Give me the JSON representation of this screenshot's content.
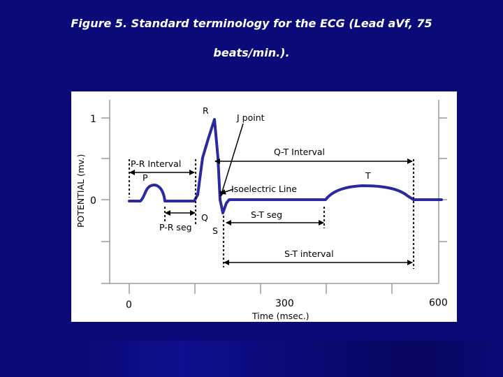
{
  "title": {
    "line1": "Figure 5. Standard terminology for the ECG (Lead aVf, 75",
    "line2": "beats/min.)."
  },
  "diagram": {
    "y_axis_label": "POTENTIAL (mv.)",
    "y_ticks": [
      "1",
      "0"
    ],
    "x_axis_label": "Time (msec.)",
    "x_ticks": [
      "0",
      "300",
      "600"
    ],
    "waves": {
      "P": "P",
      "Q": "Q",
      "R": "R",
      "S": "S",
      "T": "T"
    },
    "annotations": {
      "j_point": "J point",
      "pr_interval": "P-R Interval",
      "qt_interval": "Q-T Interval",
      "isoelectric_line": "Isoelectric Line",
      "pr_seg": "P-R seg",
      "st_seg": "S-T seg",
      "st_interval": "S-T interval"
    }
  },
  "colors": {
    "background": "#0a0a78",
    "trace": "#2a2aa0",
    "panel": "#ffffff"
  }
}
